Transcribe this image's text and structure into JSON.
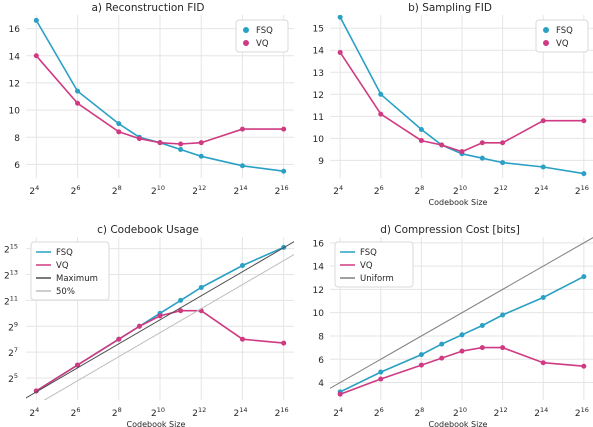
{
  "colors": {
    "fsq": "#2aa0c4",
    "vq": "#cf3a82",
    "max": "#4d4d4d",
    "half": "#bdbdbd",
    "uniform": "#808080",
    "grid": "#e5e5e5"
  },
  "chart_data": [
    {
      "type": "line",
      "title": "a) Reconstruction FID",
      "xlabel": "",
      "x_exponents": [
        4,
        6,
        8,
        9,
        10,
        11,
        12,
        14,
        16
      ],
      "x_ticks": [
        4,
        6,
        8,
        10,
        12,
        14,
        16
      ],
      "y_ticks": [
        6,
        8,
        10,
        12,
        14,
        16
      ],
      "ylim": [
        5,
        17
      ],
      "legend": "top-right",
      "series": [
        {
          "name": "FSQ",
          "values": [
            16.6,
            11.4,
            9.0,
            8.0,
            7.6,
            7.1,
            6.6,
            5.9,
            5.5
          ]
        },
        {
          "name": "VQ",
          "values": [
            14.0,
            10.5,
            8.4,
            7.9,
            7.6,
            7.5,
            7.6,
            8.6,
            8.6
          ]
        }
      ]
    },
    {
      "type": "line",
      "title": "b) Sampling FID",
      "xlabel": "Codebook Size",
      "x_exponents": [
        4,
        6,
        8,
        9,
        10,
        11,
        12,
        14,
        16
      ],
      "x_ticks": [
        4,
        6,
        8,
        10,
        12,
        14,
        16
      ],
      "y_ticks": [
        9,
        10,
        11,
        12,
        13,
        14,
        15
      ],
      "ylim": [
        8.2,
        15.6
      ],
      "legend": "top-right",
      "series": [
        {
          "name": "FSQ",
          "values": [
            15.5,
            12.0,
            10.4,
            9.7,
            9.3,
            9.1,
            8.9,
            8.7,
            8.4
          ]
        },
        {
          "name": "VQ",
          "values": [
            13.9,
            11.1,
            9.9,
            9.7,
            9.4,
            9.8,
            9.8,
            10.8,
            10.8
          ]
        }
      ]
    },
    {
      "type": "line",
      "title": "c) Codebook Usage",
      "xlabel": "Codebook Size",
      "x_exponents": [
        4,
        6,
        8,
        9,
        10,
        11,
        12,
        14,
        16
      ],
      "x_ticks": [
        4,
        6,
        8,
        10,
        12,
        14,
        16
      ],
      "y_ticks": [
        5,
        7,
        9,
        11,
        13,
        15
      ],
      "ylim": [
        3.3,
        15.9
      ],
      "legend": "top-left",
      "series": [
        {
          "name": "FSQ",
          "values": [
            4,
            6,
            8,
            9,
            10,
            11,
            12,
            13.7,
            15.1
          ]
        },
        {
          "name": "VQ",
          "values": [
            4,
            6,
            8,
            9,
            9.8,
            10.2,
            10.2,
            8,
            7.7
          ]
        },
        {
          "name": "Maximum",
          "values": [
            3.0,
            16.0
          ]
        },
        {
          "name": "50%",
          "values": [
            2.0,
            15.0
          ]
        }
      ]
    },
    {
      "type": "line",
      "title": "d) Compression Cost [bits]",
      "xlabel": "Codebook Size",
      "x_exponents": [
        4,
        6,
        8,
        9,
        10,
        11,
        12,
        14,
        16
      ],
      "x_ticks": [
        4,
        6,
        8,
        10,
        12,
        14,
        16
      ],
      "y_ticks": [
        4,
        6,
        8,
        10,
        12,
        14,
        16
      ],
      "ylim": [
        2.5,
        16.5
      ],
      "legend": "top-left",
      "series": [
        {
          "name": "FSQ",
          "values": [
            3.2,
            4.9,
            6.4,
            7.3,
            8.1,
            8.9,
            9.8,
            11.3,
            13.1
          ]
        },
        {
          "name": "VQ",
          "values": [
            3.0,
            4.3,
            5.5,
            6.1,
            6.7,
            7.0,
            7.0,
            5.7,
            5.4
          ]
        },
        {
          "name": "Uniform",
          "values": [
            4,
            16
          ]
        }
      ]
    }
  ]
}
